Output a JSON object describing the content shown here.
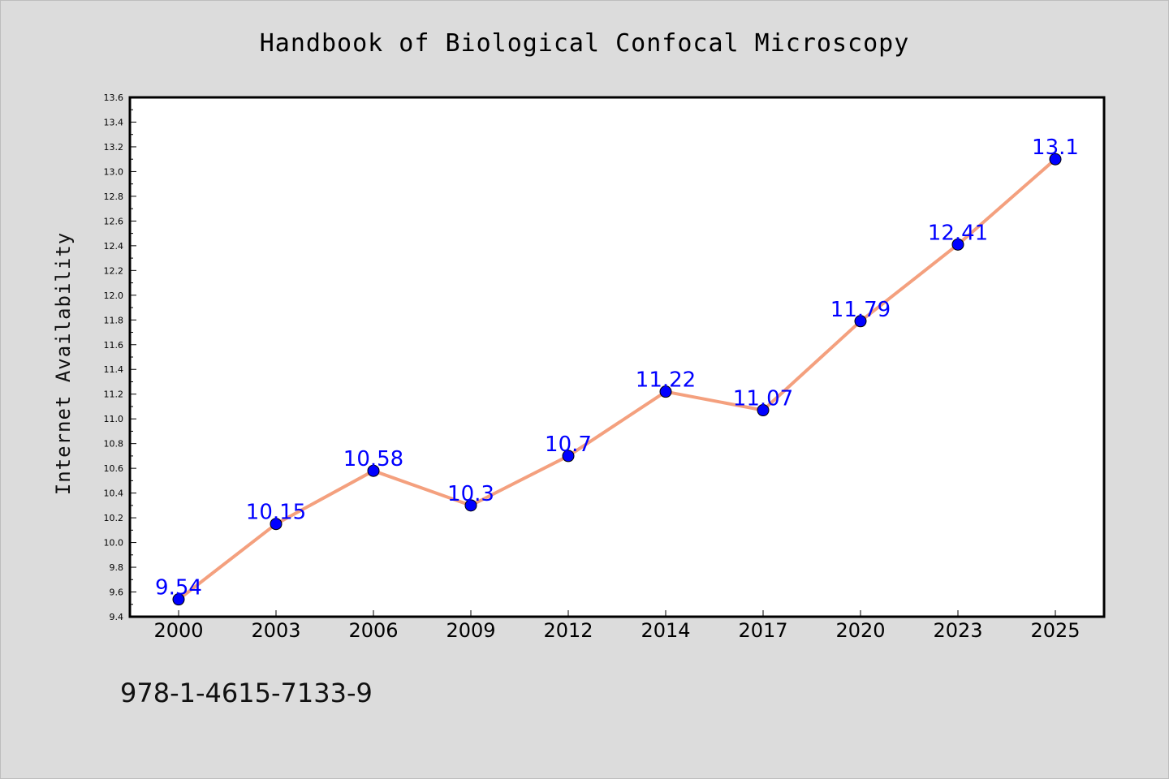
{
  "chart_data": {
    "type": "line",
    "title": "Handbook of Biological Confocal Microscopy",
    "xlabel": "",
    "ylabel": "Internet Availability",
    "categories": [
      "2000",
      "2003",
      "2006",
      "2009",
      "2012",
      "2014",
      "2017",
      "2020",
      "2023",
      "2025"
    ],
    "series": [
      {
        "values": [
          9.54,
          10.15,
          10.58,
          10.3,
          10.7,
          11.22,
          11.07,
          11.79,
          12.41,
          13.1
        ],
        "data_labels": [
          "9.54",
          "10.15",
          "10.58",
          "10.3",
          "10.7",
          "11.22",
          "11.07",
          "11.79",
          "12.41",
          "13.1"
        ],
        "line_color": "#f4a07e",
        "marker_color": "#0000ff"
      }
    ],
    "ylim": [
      9.4,
      13.6
    ],
    "yticks": [
      "9.4",
      "9.6",
      "9.8",
      "10.0",
      "10.2",
      "10.4",
      "10.6",
      "10.8",
      "11.0",
      "11.2",
      "11.4",
      "11.6",
      "11.8",
      "12.0",
      "12.2",
      "12.4",
      "12.6",
      "12.8",
      "13.0",
      "13.2",
      "13.4",
      "13.6"
    ],
    "grid": false,
    "legend": "none"
  },
  "footer_text": "978-1-4615-7133-9",
  "colors": {
    "background": "#dcdcdc",
    "plot_background": "#ffffff",
    "line": "#f4a07e",
    "marker": "#0000ff",
    "data_label": "#0000ff"
  }
}
